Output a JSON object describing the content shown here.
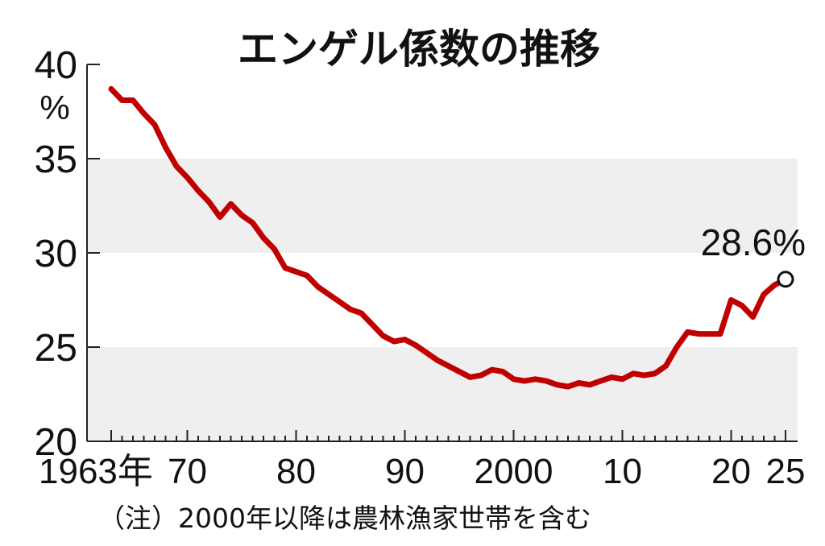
{
  "chart_data": {
    "type": "line",
    "title": "エンゲル係数の推移",
    "ylabel": "",
    "xlabel": "",
    "y_unit": "%",
    "ylim": [
      20,
      40
    ],
    "y_ticks": [
      20,
      25,
      30,
      35,
      40
    ],
    "x_range": [
      1963,
      2025
    ],
    "x_ticks": [
      {
        "year": 1963,
        "label": "1963年"
      },
      {
        "year": 1970,
        "label": "70"
      },
      {
        "year": 1980,
        "label": "80"
      },
      {
        "year": 1990,
        "label": "90"
      },
      {
        "year": 2000,
        "label": "2000"
      },
      {
        "year": 2010,
        "label": "10"
      },
      {
        "year": 2020,
        "label": "20"
      },
      {
        "year": 2025,
        "label": "25"
      }
    ],
    "bands": [
      [
        20,
        25
      ],
      [
        30,
        35
      ]
    ],
    "series": [
      {
        "name": "",
        "color": "#c00000",
        "x": [
          1963,
          1964,
          1965,
          1966,
          1967,
          1968,
          1969,
          1970,
          1971,
          1972,
          1973,
          1974,
          1975,
          1976,
          1977,
          1978,
          1979,
          1980,
          1981,
          1982,
          1983,
          1984,
          1985,
          1986,
          1987,
          1988,
          1989,
          1990,
          1991,
          1992,
          1993,
          1994,
          1995,
          1996,
          1997,
          1998,
          1999,
          2000,
          2001,
          2002,
          2003,
          2004,
          2005,
          2006,
          2007,
          2008,
          2009,
          2010,
          2011,
          2012,
          2013,
          2014,
          2015,
          2016,
          2017,
          2018,
          2019,
          2020,
          2021,
          2022,
          2023,
          2024,
          2025
        ],
        "values": [
          38.7,
          38.1,
          38.1,
          37.4,
          36.8,
          35.6,
          34.6,
          34.0,
          33.3,
          32.7,
          31.9,
          32.6,
          32.0,
          31.6,
          30.8,
          30.2,
          29.2,
          29.0,
          28.8,
          28.2,
          27.8,
          27.4,
          27.0,
          26.8,
          26.2,
          25.6,
          25.3,
          25.4,
          25.1,
          24.7,
          24.3,
          24.0,
          23.7,
          23.4,
          23.5,
          23.8,
          23.7,
          23.3,
          23.2,
          23.3,
          23.2,
          23.0,
          22.9,
          23.1,
          23.0,
          23.2,
          23.4,
          23.3,
          23.6,
          23.5,
          23.6,
          24.0,
          25.0,
          25.8,
          25.7,
          25.7,
          25.7,
          27.5,
          27.2,
          26.6,
          27.8,
          28.3,
          28.6
        ]
      }
    ],
    "annotation": {
      "x": 2025,
      "y": 28.6,
      "text": "28.6%"
    },
    "note": "（注）2000年以降は農林漁家世帯を含む",
    "grid": false
  }
}
